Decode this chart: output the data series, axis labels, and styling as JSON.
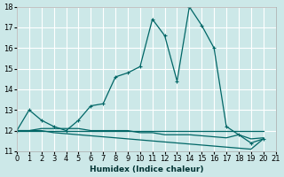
{
  "xlabel": "Humidex (Indice chaleur)",
  "ylabel": "",
  "background_color": "#cce8e8",
  "grid_color": "#ffffff",
  "line_color": "#006666",
  "xlim": [
    0,
    21
  ],
  "ylim": [
    11,
    18
  ],
  "xticks": [
    0,
    1,
    2,
    3,
    4,
    5,
    6,
    7,
    8,
    9,
    10,
    11,
    12,
    13,
    14,
    15,
    16,
    17,
    18,
    19,
    20,
    21
  ],
  "yticks": [
    11,
    12,
    13,
    14,
    15,
    16,
    17,
    18
  ],
  "series": [
    [
      12.0,
      13.0,
      12.5,
      12.2,
      12.0,
      12.5,
      13.2,
      13.3,
      14.6,
      14.8,
      15.1,
      17.4,
      16.6,
      14.4,
      18.0,
      17.1,
      16.0,
      12.2,
      11.8,
      11.4,
      11.6
    ],
    [
      12.0,
      12.0,
      12.0,
      12.0,
      12.0,
      12.0,
      12.0,
      12.0,
      12.0,
      12.0,
      12.0,
      12.0,
      12.0,
      12.0,
      12.0,
      12.0,
      12.0,
      12.0,
      12.0,
      12.0,
      12.0
    ],
    [
      12.0,
      12.0,
      12.0,
      11.9,
      11.85,
      11.8,
      11.75,
      11.7,
      11.65,
      11.6,
      11.55,
      11.5,
      11.45,
      11.4,
      11.35,
      11.3,
      11.25,
      11.2,
      11.15,
      11.1,
      11.6
    ],
    [
      12.0,
      12.0,
      12.1,
      12.1,
      12.1,
      12.1,
      12.0,
      12.0,
      12.0,
      12.0,
      11.9,
      11.9,
      11.8,
      11.8,
      11.8,
      11.75,
      11.7,
      11.65,
      11.8,
      11.6,
      11.65
    ]
  ]
}
